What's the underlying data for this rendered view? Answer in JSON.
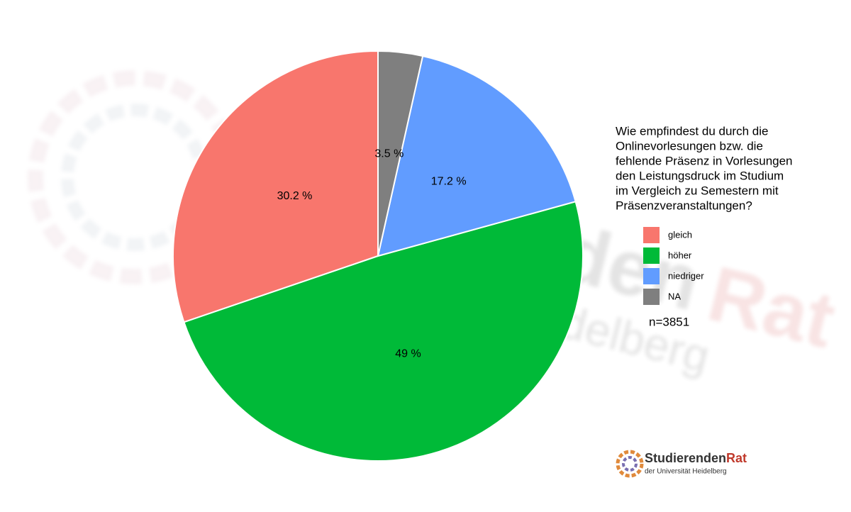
{
  "chart_data": {
    "type": "pie",
    "legend_title": [
      "Wie empfindest du durch die",
      "Onlinevorlesungen bzw. die",
      "fehlende Präsenz in Vorlesungen",
      "den Leistungsdruck im Studium",
      "im Vergleich zu Semestern mit",
      "Präsenzveranstaltungen?"
    ],
    "categories": [
      "gleich",
      "höher",
      "niedriger",
      "NA"
    ],
    "values": [
      30.2,
      49,
      17.2,
      3.5
    ],
    "value_labels": [
      "30.2 %",
      "49 %",
      "17.2 %",
      "3.5 %"
    ],
    "colors": [
      "#F8766D",
      "#00BA38",
      "#619CFF",
      "#7F7F7F"
    ],
    "note": "n=3851"
  },
  "logo": {
    "name": [
      "Studierenden",
      "Rat"
    ],
    "subtitle": "der Universität Heidelberg"
  }
}
